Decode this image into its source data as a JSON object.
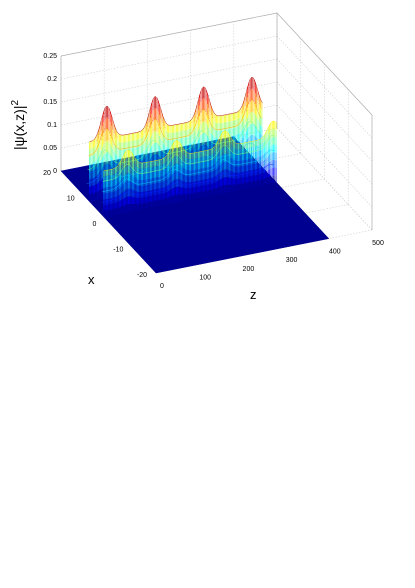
{
  "chart_data": {
    "type": "surface3d",
    "title": "",
    "xlabel": "x",
    "ylabel": "z",
    "zlabel": "|ψ(x,z)|²",
    "zlabel_main": "|ψ(x,z)|",
    "zlabel_sup": "2",
    "x_ticks": [
      "-20",
      "-10",
      "0",
      "10",
      "20"
    ],
    "z_ticks": [
      "0",
      "100",
      "200",
      "300",
      "400",
      "500"
    ],
    "amp_ticks": [
      "0",
      "0.05",
      "0.1",
      "0.15",
      "0.2",
      "0.25"
    ],
    "x_range": [
      -20,
      20
    ],
    "z_range": [
      0,
      500
    ],
    "amp_range": [
      0,
      0.25
    ],
    "grid": true,
    "colormap": "jet",
    "floor_color": "#000090",
    "beams": [
      {
        "center_x": 8,
        "base_amplitude": 0.13,
        "modulation": 0.07,
        "period": 112,
        "z_peaks": [
          40,
          150,
          262,
          374
        ],
        "z_extent": [
          0,
          400
        ]
      },
      {
        "center_x": 2,
        "base_amplitude": 0.1,
        "modulation": 0.035,
        "period": 112,
        "z_peaks": [
          56,
          168,
          280,
          392
        ],
        "z_extent": [
          0,
          400
        ]
      }
    ]
  }
}
